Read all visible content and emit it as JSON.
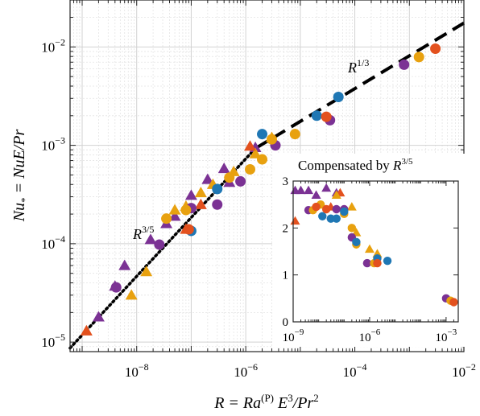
{
  "chart_data": [
    {
      "type": "scatter",
      "xlabel_parts": {
        "lhs": "R",
        "eq": " = Ra",
        "sup": "(P)",
        "mid": " E",
        "sup2": "3",
        "tail": "/Pr",
        "sup3": "2"
      },
      "ylabel_parts": {
        "lhs": "Nu",
        "sub": "*",
        "rhs": " = NuE/Pr"
      },
      "xscale": "log",
      "yscale": "log",
      "xlim": [
        6e-10,
        0.01
      ],
      "ylim": [
        8e-06,
        0.03
      ],
      "x_tick_labels": [
        {
          "base": "10",
          "exp": "−8",
          "value": 1e-08
        },
        {
          "base": "10",
          "exp": "−6",
          "value": 1e-06
        },
        {
          "base": "10",
          "exp": "−4",
          "value": 0.0001
        },
        {
          "base": "10",
          "exp": "−2",
          "value": 0.01
        }
      ],
      "y_tick_labels": [
        {
          "base": "10",
          "exp": "−5",
          "value": 1e-05
        },
        {
          "base": "10",
          "exp": "−4",
          "value": 0.0001
        },
        {
          "base": "10",
          "exp": "−3",
          "value": 0.001
        },
        {
          "base": "10",
          "exp": "−2",
          "value": 0.01
        }
      ],
      "grid": true,
      "fits": [
        {
          "style": "dotted",
          "label_base": "R",
          "label_exp": "3/5",
          "x": [
            6e-10,
            1.5e-06
          ],
          "y": [
            8.7e-06,
            0.00093
          ]
        },
        {
          "style": "dashed",
          "label_base": "R",
          "label_exp": "1/3",
          "x": [
            1.5e-06,
            0.01
          ],
          "y": [
            0.00093,
            0.0175
          ]
        }
      ],
      "series": [
        {
          "color": "#7b3294",
          "marker": "triangle",
          "points": [
            [
              2e-09,
              1.8e-05
            ],
            [
              4e-09,
              3.7e-05
            ],
            [
              6e-09,
              6e-05
            ],
            [
              1.8e-08,
              0.00011
            ],
            [
              3.5e-08,
              0.00016
            ],
            [
              5e-08,
              0.00019
            ],
            [
              1e-07,
              0.00031
            ],
            [
              2e-07,
              0.00045
            ],
            [
              4e-07,
              0.00058
            ],
            [
              5e-07,
              0.00042
            ],
            [
              1.5e-06,
              0.00095
            ]
          ]
        },
        {
          "color": "#e8a10f",
          "marker": "triangle",
          "points": [
            [
              8e-09,
              3e-05
            ],
            [
              1.5e-08,
              5.2e-05
            ],
            [
              5e-08,
              0.00022
            ],
            [
              8e-08,
              0.00024
            ],
            [
              1.5e-07,
              0.00033
            ],
            [
              2.5e-07,
              0.0004
            ],
            [
              6e-07,
              0.00054
            ],
            [
              1.5e-06,
              0.00082
            ],
            [
              3e-06,
              0.0012
            ]
          ]
        },
        {
          "color": "#e3511e",
          "marker": "triangle",
          "points": [
            [
              1.2e-09,
              1.3e-05
            ],
            [
              8e-08,
              0.00014
            ],
            [
              1.5e-07,
              0.00025
            ],
            [
              1.2e-06,
              0.00098
            ]
          ]
        },
        {
          "color": "#7b3294",
          "marker": "circle",
          "points": [
            [
              4.2e-09,
              3.6e-05
            ],
            [
              2.6e-08,
              9.8e-05
            ],
            [
              1e-07,
              0.00023
            ],
            [
              3e-07,
              0.00025
            ],
            [
              8e-07,
              0.00043
            ],
            [
              3.5e-06,
              0.001
            ],
            [
              3.5e-05,
              0.0018
            ],
            [
              0.0008,
              0.0066
            ]
          ]
        },
        {
          "color": "#e8a10f",
          "marker": "circle",
          "points": [
            [
              3.5e-08,
              0.00018
            ],
            [
              8e-08,
              0.00022
            ],
            [
              5e-07,
              0.00047
            ],
            [
              1.2e-06,
              0.00057
            ],
            [
              2e-06,
              0.00072
            ],
            [
              3e-06,
              0.00115
            ],
            [
              8e-06,
              0.0013
            ],
            [
              0.0015,
              0.0079
            ]
          ]
        },
        {
          "color": "#1f77b4",
          "marker": "circle",
          "points": [
            [
              1e-07,
              0.000135
            ],
            [
              3e-07,
              0.00036
            ],
            [
              2e-06,
              0.0013
            ],
            [
              2e-05,
              0.002
            ],
            [
              5e-05,
              0.0031
            ]
          ]
        },
        {
          "color": "#e3511e",
          "marker": "circle",
          "points": [
            [
              9e-08,
              0.00014
            ],
            [
              3e-05,
              0.00195
            ],
            [
              0.003,
              0.0096
            ]
          ]
        }
      ]
    },
    {
      "type": "scatter",
      "title": "Compensated by ",
      "title_math": {
        "base": "R",
        "exp": "3/5"
      },
      "xscale": "log",
      "yscale": "linear",
      "xlim": [
        1e-09,
        0.003
      ],
      "ylim": [
        0,
        3
      ],
      "x_tick_labels": [
        {
          "base": "10",
          "exp": "−9",
          "value": 1e-09
        },
        {
          "base": "10",
          "exp": "−6",
          "value": 1e-06
        },
        {
          "base": "10",
          "exp": "−3",
          "value": 0.001
        }
      ],
      "y_tick_labels": [
        "0",
        "1",
        "2",
        "3"
      ],
      "y_ticks": [
        0,
        1,
        2,
        3
      ],
      "grid": false,
      "series": [
        {
          "color": "#7b3294",
          "marker": "triangle",
          "points": [
            [
              1.2e-09,
              2.8
            ],
            [
              2e-09,
              2.8
            ],
            [
              4e-09,
              2.8
            ],
            [
              8e-09,
              2.7
            ],
            [
              2e-08,
              2.85
            ],
            [
              5e-08,
              2.75
            ]
          ]
        },
        {
          "color": "#e3511e",
          "marker": "triangle",
          "points": [
            [
              1.2e-09,
              2.15
            ],
            [
              3e-08,
              2.45
            ],
            [
              7e-08,
              2.75
            ]
          ]
        },
        {
          "color": "#e8a10f",
          "marker": "triangle",
          "points": [
            [
              5e-08,
              2.7
            ],
            [
              2e-07,
              2.45
            ],
            [
              3e-07,
              1.9
            ],
            [
              1e-06,
              1.55
            ],
            [
              2e-06,
              1.45
            ]
          ]
        },
        {
          "color": "#7b3294",
          "marker": "circle",
          "points": [
            [
              4e-09,
              2.38
            ],
            [
              5e-08,
              2.4
            ],
            [
              1e-07,
              2.4
            ],
            [
              2e-07,
              1.8
            ],
            [
              8e-07,
              1.25
            ],
            [
              0.001,
              0.5
            ]
          ]
        },
        {
          "color": "#e8a10f",
          "marker": "circle",
          "points": [
            [
              6e-09,
              2.38
            ],
            [
              1.2e-08,
              2.5
            ],
            [
              1e-07,
              2.3
            ],
            [
              2e-07,
              2.0
            ],
            [
              3e-07,
              1.65
            ],
            [
              1.5e-06,
              1.25
            ],
            [
              0.0015,
              0.45
            ]
          ]
        },
        {
          "color": "#1f77b4",
          "marker": "circle",
          "points": [
            [
              1.4e-08,
              2.25
            ],
            [
              3e-08,
              2.2
            ],
            [
              5e-08,
              2.2
            ],
            [
              1e-07,
              2.35
            ],
            [
              3e-07,
              1.7
            ],
            [
              2e-06,
              1.35
            ],
            [
              5e-06,
              1.3
            ]
          ]
        },
        {
          "color": "#e3511e",
          "marker": "circle",
          "points": [
            [
              8e-09,
              2.45
            ],
            [
              2e-08,
              2.4
            ],
            [
              2e-06,
              1.25
            ],
            [
              0.002,
              0.42
            ]
          ]
        }
      ]
    }
  ]
}
